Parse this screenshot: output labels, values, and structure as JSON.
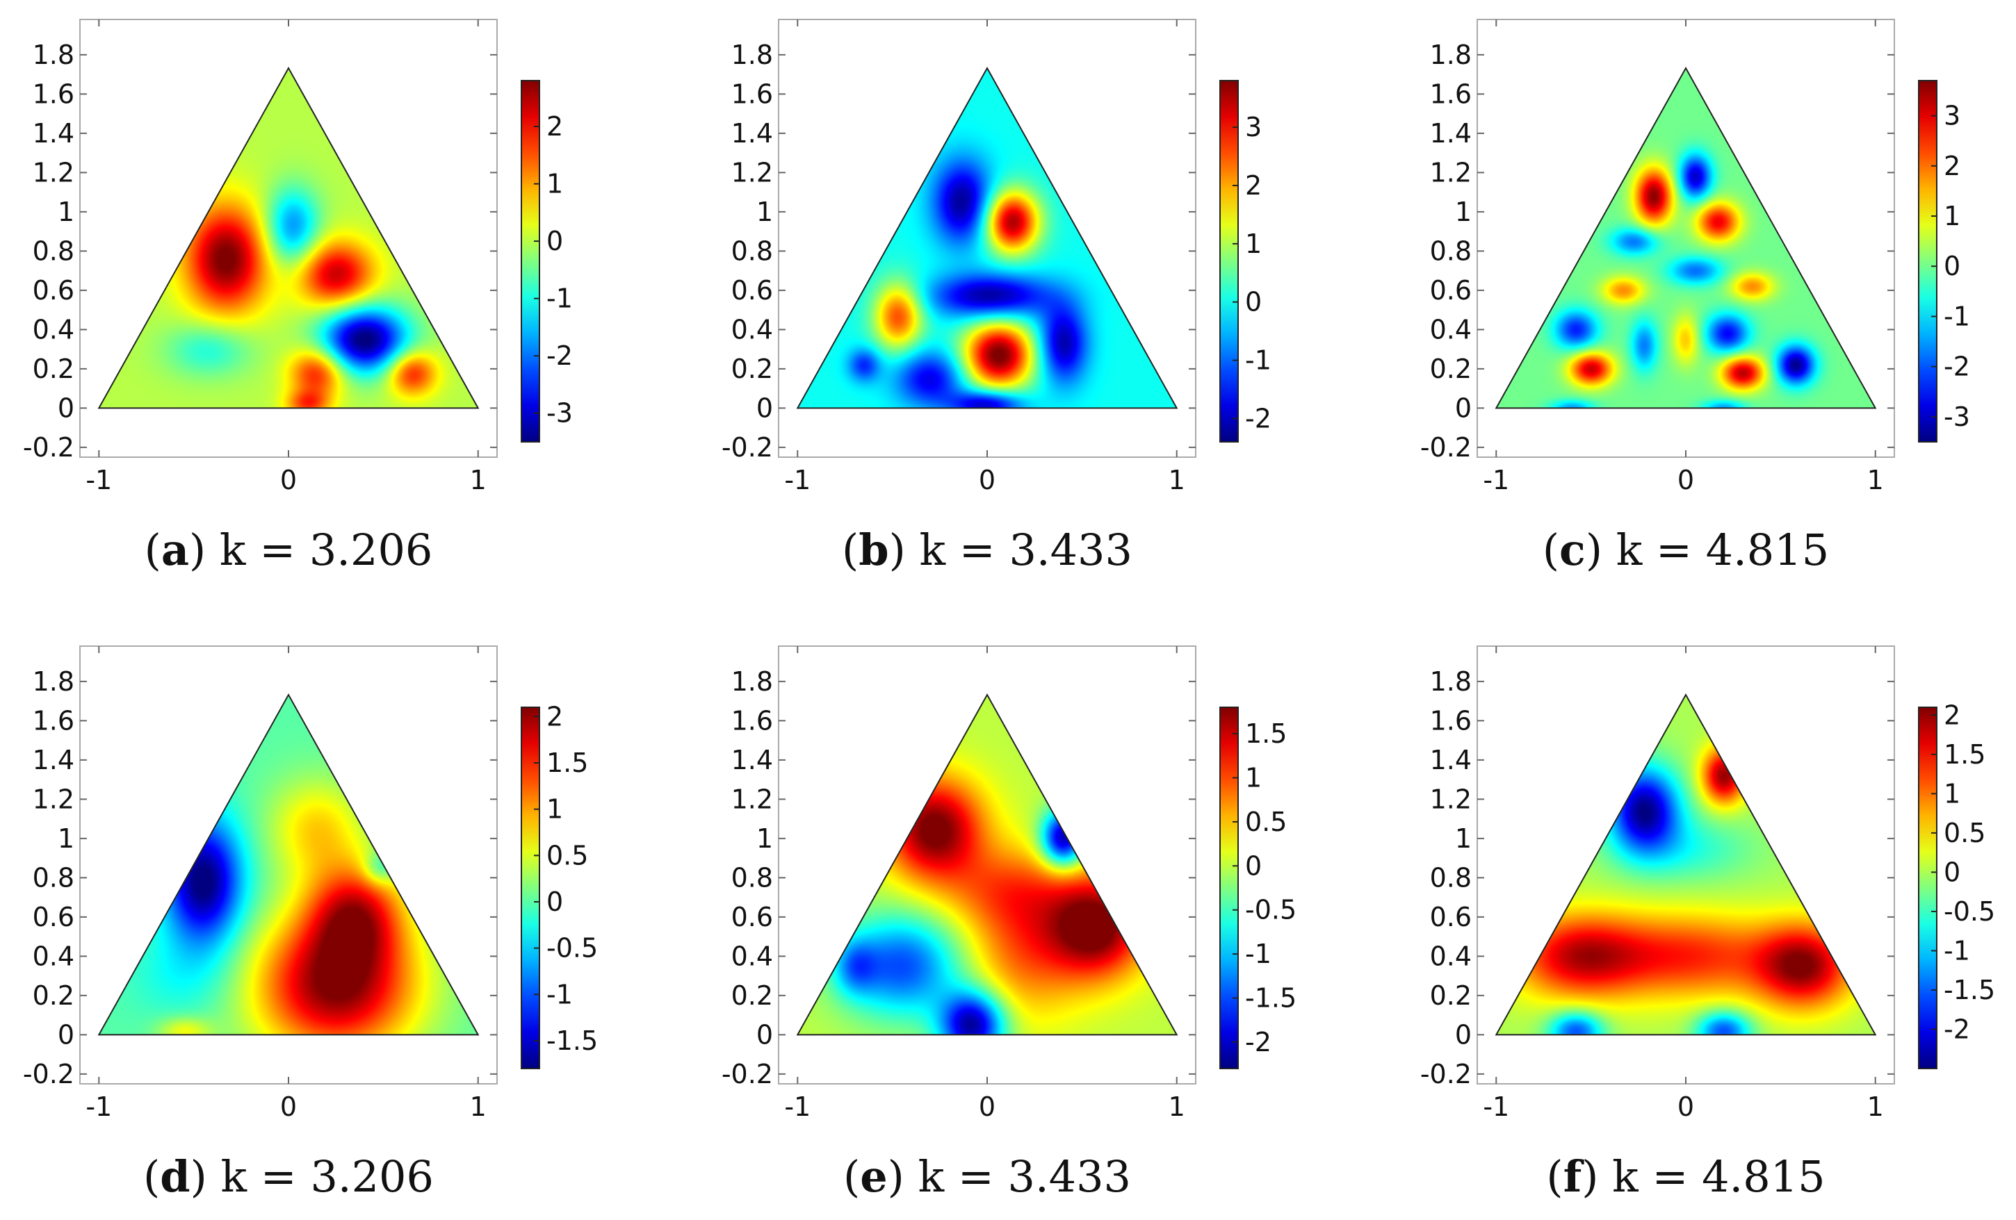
{
  "chart_data": [
    {
      "type": "heatmap",
      "panel": "a",
      "caption_label": "a",
      "caption_text": "k = 3.206",
      "x_ticks": [
        "-1",
        "0",
        "1"
      ],
      "y_ticks": [
        "-0.2",
        "0",
        "0.2",
        "0.4",
        "0.6",
        "0.8",
        "1",
        "1.2",
        "1.4",
        "1.6",
        "1.8"
      ],
      "xlim": [
        -1.1,
        1.1
      ],
      "ylim": [
        -0.25,
        1.98
      ],
      "colorbar_ticks": [
        "2",
        "1",
        "0",
        "-1",
        "-2",
        "-3"
      ],
      "clim": [
        -3.5,
        2.8
      ],
      "blobs": [
        {
          "x": -0.33,
          "y": 0.76,
          "sx": 0.15,
          "sy": 0.19,
          "a": 2.9
        },
        {
          "x": 0.02,
          "y": 0.92,
          "sx": 0.1,
          "sy": 0.14,
          "a": -1.9
        },
        {
          "x": 0.25,
          "y": 0.68,
          "sx": 0.14,
          "sy": 0.12,
          "a": 2.4
        },
        {
          "x": 0.4,
          "y": 0.35,
          "sx": 0.16,
          "sy": 0.12,
          "a": -3.6
        },
        {
          "x": -0.42,
          "y": 0.3,
          "sx": 0.16,
          "sy": 0.1,
          "a": -1.0
        },
        {
          "x": 0.15,
          "y": 0.18,
          "sx": 0.1,
          "sy": 0.09,
          "a": 2.0
        },
        {
          "x": 0.65,
          "y": 0.18,
          "sx": 0.09,
          "sy": 0.08,
          "a": 2.0
        },
        {
          "x": 0.1,
          "y": 0.02,
          "sx": 0.08,
          "sy": 0.05,
          "a": 1.5
        }
      ]
    },
    {
      "type": "heatmap",
      "panel": "b",
      "caption_label": "b",
      "caption_text": "k = 3.433",
      "x_ticks": [
        "-1",
        "0",
        "1"
      ],
      "y_ticks": [
        "-0.2",
        "0",
        "0.2",
        "0.4",
        "0.6",
        "0.8",
        "1",
        "1.2",
        "1.4",
        "1.6",
        "1.8"
      ],
      "xlim": [
        -1.1,
        1.1
      ],
      "ylim": [
        -0.25,
        1.98
      ],
      "colorbar_ticks": [
        "3",
        "2",
        "1",
        "0",
        "-1",
        "-2"
      ],
      "clim": [
        -2.4,
        3.8
      ],
      "blobs": [
        {
          "x": -0.13,
          "y": 1.05,
          "sx": 0.11,
          "sy": 0.15,
          "a": -2.3
        },
        {
          "x": 0.13,
          "y": 0.95,
          "sx": 0.1,
          "sy": 0.11,
          "a": 3.6
        },
        {
          "x": 0.02,
          "y": 0.57,
          "sx": 0.22,
          "sy": 0.08,
          "a": -2.3
        },
        {
          "x": -0.47,
          "y": 0.47,
          "sx": 0.09,
          "sy": 0.12,
          "a": 2.6
        },
        {
          "x": 0.06,
          "y": 0.27,
          "sx": 0.13,
          "sy": 0.12,
          "a": 3.9
        },
        {
          "x": 0.4,
          "y": 0.33,
          "sx": 0.09,
          "sy": 0.14,
          "a": -2.2
        },
        {
          "x": -0.3,
          "y": 0.15,
          "sx": 0.13,
          "sy": 0.1,
          "a": -1.8
        },
        {
          "x": 0.0,
          "y": 0.02,
          "sx": 0.13,
          "sy": 0.05,
          "a": -2.2
        },
        {
          "x": -0.65,
          "y": 0.22,
          "sx": 0.06,
          "sy": 0.06,
          "a": -1.4
        }
      ]
    },
    {
      "type": "heatmap",
      "panel": "c",
      "caption_label": "c",
      "caption_text": "k = 4.815",
      "x_ticks": [
        "-1",
        "0",
        "1"
      ],
      "y_ticks": [
        "-0.2",
        "0",
        "0.2",
        "0.4",
        "0.6",
        "0.8",
        "1",
        "1.2",
        "1.4",
        "1.6",
        "1.8"
      ],
      "xlim": [
        -1.1,
        1.1
      ],
      "ylim": [
        -0.25,
        1.98
      ],
      "colorbar_ticks": [
        "3",
        "2",
        "1",
        "0",
        "-1",
        "-2",
        "-3"
      ],
      "clim": [
        -3.5,
        3.7
      ],
      "blobs": [
        {
          "x": -0.17,
          "y": 1.08,
          "sx": 0.07,
          "sy": 0.1,
          "a": 3.6
        },
        {
          "x": 0.05,
          "y": 1.18,
          "sx": 0.06,
          "sy": 0.08,
          "a": -3.0
        },
        {
          "x": 0.17,
          "y": 0.95,
          "sx": 0.08,
          "sy": 0.07,
          "a": 2.9
        },
        {
          "x": -0.27,
          "y": 0.85,
          "sx": 0.09,
          "sy": 0.05,
          "a": -1.8
        },
        {
          "x": -0.33,
          "y": 0.6,
          "sx": 0.08,
          "sy": 0.05,
          "a": 1.8
        },
        {
          "x": 0.05,
          "y": 0.7,
          "sx": 0.1,
          "sy": 0.05,
          "a": -1.8
        },
        {
          "x": 0.35,
          "y": 0.62,
          "sx": 0.08,
          "sy": 0.05,
          "a": 1.8
        },
        {
          "x": -0.58,
          "y": 0.4,
          "sx": 0.08,
          "sy": 0.07,
          "a": -2.4
        },
        {
          "x": -0.22,
          "y": 0.32,
          "sx": 0.05,
          "sy": 0.09,
          "a": -1.7
        },
        {
          "x": 0.0,
          "y": 0.35,
          "sx": 0.05,
          "sy": 0.09,
          "a": 1.4
        },
        {
          "x": 0.22,
          "y": 0.38,
          "sx": 0.08,
          "sy": 0.07,
          "a": -2.6
        },
        {
          "x": -0.5,
          "y": 0.2,
          "sx": 0.08,
          "sy": 0.06,
          "a": 3.2
        },
        {
          "x": 0.3,
          "y": 0.18,
          "sx": 0.08,
          "sy": 0.06,
          "a": 3.3
        },
        {
          "x": 0.58,
          "y": 0.22,
          "sx": 0.07,
          "sy": 0.07,
          "a": -3.4
        },
        {
          "x": -0.6,
          "y": 0.0,
          "sx": 0.08,
          "sy": 0.03,
          "a": -1.5
        },
        {
          "x": 0.2,
          "y": 0.0,
          "sx": 0.08,
          "sy": 0.03,
          "a": -1.5
        }
      ]
    },
    {
      "type": "heatmap",
      "panel": "d",
      "caption_label": "d",
      "caption_text": "k = 3.206",
      "x_ticks": [
        "-1",
        "0",
        "1"
      ],
      "y_ticks": [
        "-0.2",
        "0",
        "0.2",
        "0.4",
        "0.6",
        "0.8",
        "1",
        "1.2",
        "1.4",
        "1.6",
        "1.8"
      ],
      "xlim": [
        -1.1,
        1.1
      ],
      "ylim": [
        -0.25,
        1.98
      ],
      "colorbar_ticks": [
        "2",
        "1.5",
        "1",
        "0.5",
        "0",
        "-0.5",
        "-1",
        "-1.5"
      ],
      "clim": [
        -1.8,
        2.1
      ],
      "blobs": [
        {
          "x": -0.45,
          "y": 0.78,
          "sx": 0.14,
          "sy": 0.22,
          "a": -1.9
        },
        {
          "x": 0.25,
          "y": 0.25,
          "sx": 0.3,
          "sy": 0.25,
          "a": 2.1
        },
        {
          "x": 0.35,
          "y": 0.62,
          "sx": 0.18,
          "sy": 0.18,
          "a": 1.5
        },
        {
          "x": 0.15,
          "y": 1.05,
          "sx": 0.18,
          "sy": 0.18,
          "a": 0.8
        },
        {
          "x": 0.48,
          "y": 0.85,
          "sx": 0.06,
          "sy": 0.06,
          "a": -0.6
        },
        {
          "x": -0.55,
          "y": 0.3,
          "sx": 0.2,
          "sy": 0.15,
          "a": -0.3
        },
        {
          "x": -0.55,
          "y": 0.02,
          "sx": 0.1,
          "sy": 0.05,
          "a": 0.6
        }
      ]
    },
    {
      "type": "heatmap",
      "panel": "e",
      "caption_label": "e",
      "caption_text": "k = 3.433",
      "x_ticks": [
        "-1",
        "0",
        "1"
      ],
      "y_ticks": [
        "-0.2",
        "0",
        "0.2",
        "0.4",
        "0.6",
        "0.8",
        "1",
        "1.2",
        "1.4",
        "1.6",
        "1.8"
      ],
      "xlim": [
        -1.1,
        1.1
      ],
      "ylim": [
        -0.25,
        1.98
      ],
      "colorbar_ticks": [
        "1.5",
        "1",
        "0.5",
        "0",
        "-0.5",
        "-1",
        "-1.5",
        "-2"
      ],
      "clim": [
        -2.3,
        1.8
      ],
      "blobs": [
        {
          "x": -0.28,
          "y": 1.05,
          "sx": 0.18,
          "sy": 0.18,
          "a": 1.9
        },
        {
          "x": 0.4,
          "y": 1.0,
          "sx": 0.08,
          "sy": 0.1,
          "a": -2.2
        },
        {
          "x": 0.58,
          "y": 0.55,
          "sx": 0.18,
          "sy": 0.18,
          "a": 1.9
        },
        {
          "x": 0.2,
          "y": 0.45,
          "sx": 0.22,
          "sy": 0.25,
          "a": 0.9
        },
        {
          "x": -0.45,
          "y": 0.35,
          "sx": 0.22,
          "sy": 0.18,
          "a": -1.5
        },
        {
          "x": -0.08,
          "y": 0.05,
          "sx": 0.12,
          "sy": 0.12,
          "a": -2.2
        },
        {
          "x": -0.7,
          "y": 0.35,
          "sx": 0.08,
          "sy": 0.1,
          "a": -0.8
        },
        {
          "x": 0.1,
          "y": 0.75,
          "sx": 0.25,
          "sy": 0.15,
          "a": 0.7
        }
      ]
    },
    {
      "type": "heatmap",
      "panel": "f",
      "caption_label": "f",
      "caption_text": "k = 4.815",
      "x_ticks": [
        "-1",
        "0",
        "1"
      ],
      "y_ticks": [
        "-0.2",
        "0",
        "0.2",
        "0.4",
        "0.6",
        "0.8",
        "1",
        "1.2",
        "1.4",
        "1.6",
        "1.8"
      ],
      "xlim": [
        -1.1,
        1.1
      ],
      "ylim": [
        -0.25,
        1.98
      ],
      "colorbar_ticks": [
        "2",
        "1.5",
        "1",
        "0.5",
        "0",
        "-0.5",
        "-1",
        "-1.5",
        "-2"
      ],
      "clim": [
        -2.5,
        2.1
      ],
      "blobs": [
        {
          "x": -0.22,
          "y": 1.15,
          "sx": 0.13,
          "sy": 0.15,
          "a": -2.4
        },
        {
          "x": 0.2,
          "y": 1.32,
          "sx": 0.08,
          "sy": 0.1,
          "a": 2.0
        },
        {
          "x": 0.0,
          "y": 0.95,
          "sx": 0.25,
          "sy": 0.12,
          "a": -0.6
        },
        {
          "x": -0.55,
          "y": 0.4,
          "sx": 0.25,
          "sy": 0.15,
          "a": 1.8
        },
        {
          "x": 0.05,
          "y": 0.4,
          "sx": 0.3,
          "sy": 0.15,
          "a": 1.3
        },
        {
          "x": 0.62,
          "y": 0.35,
          "sx": 0.18,
          "sy": 0.15,
          "a": 2.0
        },
        {
          "x": -0.58,
          "y": 0.02,
          "sx": 0.1,
          "sy": 0.07,
          "a": -1.6
        },
        {
          "x": 0.2,
          "y": 0.02,
          "sx": 0.1,
          "sy": 0.07,
          "a": -1.6
        }
      ]
    }
  ]
}
